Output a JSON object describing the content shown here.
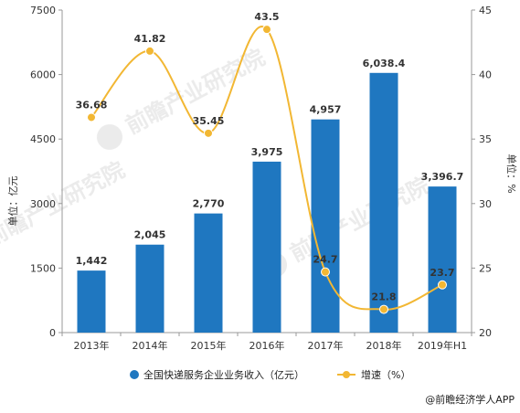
{
  "chart_data": {
    "type": "bar+line",
    "categories": [
      "2013年",
      "2014年",
      "2015年",
      "2016年",
      "2017年",
      "2018年",
      "2019年H1"
    ],
    "series": [
      {
        "name": "全国快递服务企业业务收入（亿元）",
        "type": "bar",
        "axis": "left",
        "color": "#1f77c0",
        "values": [
          1442,
          2045,
          2770,
          3975,
          4957,
          6038.4,
          3396.7
        ],
        "labels": [
          "1,442",
          "2,045",
          "2,770",
          "3,975",
          "4,957",
          "6,038.4",
          "3,396.7"
        ]
      },
      {
        "name": "增速（%）",
        "type": "line",
        "axis": "right",
        "color": "#f2b733",
        "smooth": true,
        "values": [
          36.68,
          41.82,
          35.45,
          43.5,
          24.7,
          21.8,
          23.7
        ],
        "labels": [
          "36.68",
          "41.82",
          "35.45",
          "43.5",
          "24.7",
          "21.8",
          "23.7"
        ]
      }
    ],
    "left_axis": {
      "label": "单位：亿元",
      "ylim": [
        0,
        7500
      ],
      "ticks": [
        0,
        1500,
        3000,
        4500,
        6000,
        7500
      ]
    },
    "right_axis": {
      "label": "单位：%",
      "ylim": [
        20,
        45
      ],
      "ticks": [
        20,
        25,
        30,
        35,
        40,
        45
      ]
    },
    "grid": false,
    "legend_position": "bottom"
  },
  "watermark": {
    "brand": "前瞻产业研究院"
  },
  "footer": {
    "source": "@前瞻经济学人APP"
  },
  "colors": {
    "bar": "#1f77c0",
    "line": "#f2b733",
    "axis": "#999999"
  }
}
